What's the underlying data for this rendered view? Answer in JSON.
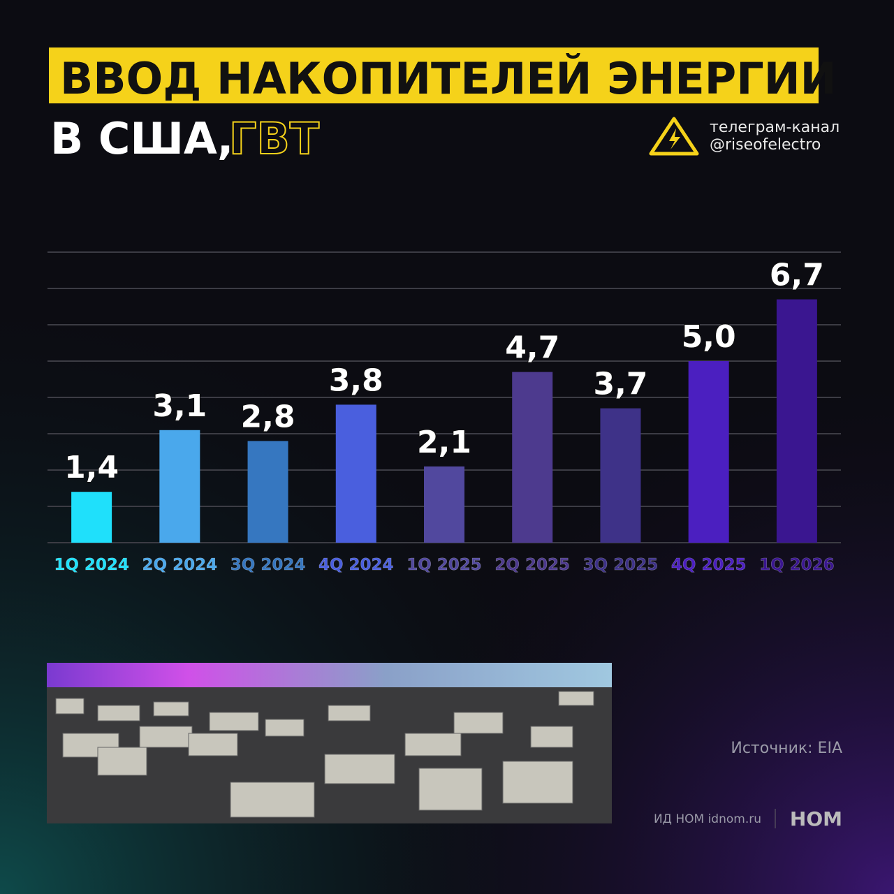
{
  "header": {
    "title": "ВВОД НАКОПИТЕЛЕЙ ЭНЕРГИИ",
    "subtitle": "В США,",
    "unit": "ГВТ"
  },
  "channel": {
    "line1": "телеграм-канал",
    "line2": "@riseofelectro"
  },
  "chart_data": {
    "type": "bar",
    "categories": [
      "1Q 2024",
      "2Q 2024",
      "3Q 2024",
      "4Q 2024",
      "1Q 2025",
      "2Q 2025",
      "3Q 2025",
      "4Q 2025",
      "1Q 2026"
    ],
    "values": [
      1.4,
      3.1,
      2.8,
      3.8,
      2.1,
      4.7,
      3.7,
      5.0,
      6.7
    ],
    "value_labels": [
      "1,4",
      "3,1",
      "2,8",
      "3,8",
      "2,1",
      "4,7",
      "3,7",
      "5,0",
      "6,7"
    ],
    "colors": [
      "#1fe0fb",
      "#4aa8ec",
      "#3677c0",
      "#4a5fde",
      "#51489e",
      "#4d3a8e",
      "#3e3288",
      "#4b1fc0",
      "#3a1690"
    ],
    "ylim": [
      0,
      8
    ],
    "yticks": [
      0,
      1,
      2,
      3,
      4,
      5,
      6,
      7,
      8
    ],
    "grid": true
  },
  "footer": {
    "source": "Источник: EIA",
    "publisher": "ИД НОМ idnom.ru",
    "logo": "НОМ"
  }
}
